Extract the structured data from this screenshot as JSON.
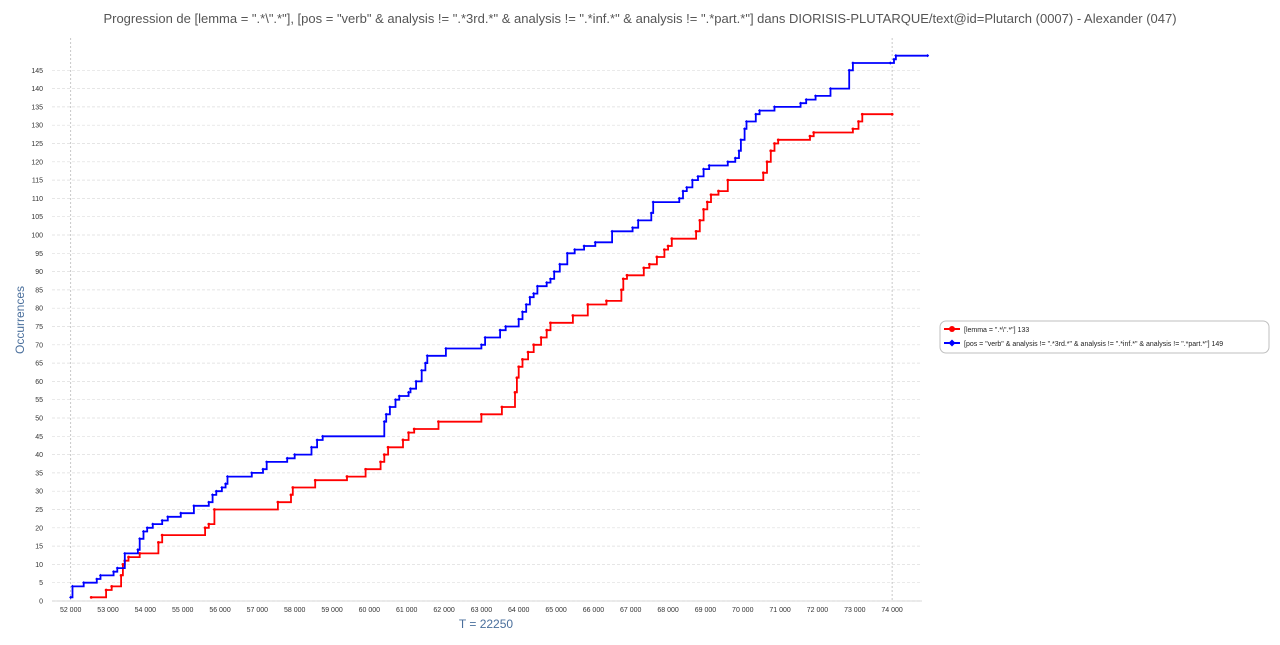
{
  "chart_data": {
    "type": "line",
    "title": "Progression de [lemma = \".*\\\".*\"], [pos = \"verb\" & analysis != \".*3rd.*\" & analysis != \".*inf.*\" & analysis != \".*part.*\"] dans DIORISIS-PLUTARQUE/text@id=Plutarch (0007) - Alexander (047)",
    "xlabel": "T = 22250",
    "ylabel": "Occurrences",
    "xlim": [
      51500,
      74800
    ],
    "ylim": [
      0,
      150
    ],
    "x_ticks": [
      52000,
      53000,
      54000,
      55000,
      56000,
      57000,
      58000,
      59000,
      60000,
      61000,
      62000,
      63000,
      64000,
      65000,
      66000,
      67000,
      68000,
      69000,
      70000,
      71000,
      72000,
      73000,
      74000
    ],
    "x_tick_labels": [
      "52 000",
      "53 000",
      "54 000",
      "55 000",
      "56 000",
      "57 000",
      "58 000",
      "59 000",
      "60 000",
      "61 000",
      "62 000",
      "63 000",
      "64 000",
      "65 000",
      "66 000",
      "67 000",
      "68 000",
      "69 000",
      "70 000",
      "71 000",
      "72 000",
      "73 000",
      "74 000"
    ],
    "y_ticks": [
      0,
      5,
      10,
      15,
      20,
      25,
      30,
      35,
      40,
      45,
      50,
      55,
      60,
      65,
      70,
      75,
      80,
      85,
      90,
      95,
      100,
      105,
      110,
      115,
      120,
      125,
      130,
      135,
      140,
      145
    ],
    "y_tick_labels": [
      "0",
      "5",
      "10",
      "15",
      "20",
      "25",
      "30",
      "35",
      "40",
      "45",
      "50",
      "55",
      "60",
      "65",
      "70",
      "75",
      "80",
      "85",
      "90",
      "95",
      "100",
      "105",
      "110",
      "115",
      "120",
      "125",
      "130",
      "135",
      "140",
      "145"
    ],
    "grid": true,
    "legend_position": "right",
    "series": [
      {
        "name": "[lemma = \".*\\\".*\"] 133",
        "color": "#ff0000",
        "marker": "circle",
        "points": [
          [
            52550,
            1
          ],
          [
            52950,
            3
          ],
          [
            53100,
            4
          ],
          [
            53350,
            7
          ],
          [
            53400,
            10
          ],
          [
            53450,
            11
          ],
          [
            53550,
            12
          ],
          [
            53850,
            13
          ],
          [
            54350,
            16
          ],
          [
            54450,
            18
          ],
          [
            55600,
            20
          ],
          [
            55700,
            21
          ],
          [
            55850,
            25
          ],
          [
            57550,
            27
          ],
          [
            57900,
            29
          ],
          [
            57950,
            31
          ],
          [
            58550,
            33
          ],
          [
            59400,
            34
          ],
          [
            59900,
            36
          ],
          [
            60300,
            38
          ],
          [
            60400,
            40
          ],
          [
            60500,
            42
          ],
          [
            60900,
            44
          ],
          [
            61050,
            46
          ],
          [
            61200,
            47
          ],
          [
            61850,
            49
          ],
          [
            63000,
            51
          ],
          [
            63550,
            53
          ],
          [
            63900,
            57
          ],
          [
            63950,
            61
          ],
          [
            64000,
            64
          ],
          [
            64100,
            66
          ],
          [
            64250,
            68
          ],
          [
            64400,
            70
          ],
          [
            64600,
            72
          ],
          [
            64750,
            74
          ],
          [
            64850,
            76
          ],
          [
            65450,
            78
          ],
          [
            65850,
            81
          ],
          [
            66350,
            82
          ],
          [
            66750,
            85
          ],
          [
            66800,
            88
          ],
          [
            66900,
            89
          ],
          [
            67350,
            91
          ],
          [
            67500,
            92
          ],
          [
            67700,
            94
          ],
          [
            67900,
            96
          ],
          [
            68000,
            97
          ],
          [
            68100,
            99
          ],
          [
            68750,
            101
          ],
          [
            68850,
            104
          ],
          [
            68950,
            107
          ],
          [
            69050,
            109
          ],
          [
            69150,
            111
          ],
          [
            69350,
            112
          ],
          [
            69600,
            115
          ],
          [
            70550,
            117
          ],
          [
            70650,
            120
          ],
          [
            70750,
            123
          ],
          [
            70850,
            125
          ],
          [
            70950,
            126
          ],
          [
            71800,
            127
          ],
          [
            71900,
            128
          ],
          [
            72950,
            129
          ],
          [
            73100,
            131
          ],
          [
            73200,
            133
          ],
          [
            74000,
            133
          ]
        ]
      },
      {
        "name": "[pos = \"verb\" & analysis != \".*3rd.*\" & analysis != \".*inf.*\" & analysis != \".*part.*\"] 149",
        "color": "#0000ff",
        "marker": "diamond",
        "points": [
          [
            52000,
            1
          ],
          [
            52050,
            4
          ],
          [
            52350,
            5
          ],
          [
            52700,
            6
          ],
          [
            52800,
            7
          ],
          [
            53150,
            8
          ],
          [
            53250,
            9
          ],
          [
            53450,
            13
          ],
          [
            53800,
            14
          ],
          [
            53850,
            17
          ],
          [
            53950,
            19
          ],
          [
            54050,
            20
          ],
          [
            54200,
            21
          ],
          [
            54450,
            22
          ],
          [
            54600,
            23
          ],
          [
            54950,
            24
          ],
          [
            55300,
            26
          ],
          [
            55700,
            27
          ],
          [
            55800,
            29
          ],
          [
            55900,
            30
          ],
          [
            56050,
            31
          ],
          [
            56150,
            32
          ],
          [
            56200,
            34
          ],
          [
            56850,
            35
          ],
          [
            57150,
            36
          ],
          [
            57250,
            38
          ],
          [
            57800,
            39
          ],
          [
            58000,
            40
          ],
          [
            58450,
            42
          ],
          [
            58600,
            44
          ],
          [
            58750,
            45
          ],
          [
            60400,
            49
          ],
          [
            60450,
            51
          ],
          [
            60550,
            53
          ],
          [
            60700,
            55
          ],
          [
            60800,
            56
          ],
          [
            61050,
            57
          ],
          [
            61100,
            58
          ],
          [
            61250,
            60
          ],
          [
            61400,
            63
          ],
          [
            61500,
            65
          ],
          [
            61550,
            67
          ],
          [
            62050,
            69
          ],
          [
            63000,
            70
          ],
          [
            63100,
            72
          ],
          [
            63500,
            74
          ],
          [
            63650,
            75
          ],
          [
            64000,
            77
          ],
          [
            64100,
            79
          ],
          [
            64200,
            81
          ],
          [
            64300,
            83
          ],
          [
            64400,
            84
          ],
          [
            64500,
            86
          ],
          [
            64750,
            87
          ],
          [
            64850,
            88
          ],
          [
            64950,
            90
          ],
          [
            65100,
            92
          ],
          [
            65300,
            95
          ],
          [
            65500,
            96
          ],
          [
            65750,
            97
          ],
          [
            66050,
            98
          ],
          [
            66500,
            101
          ],
          [
            67050,
            102
          ],
          [
            67200,
            104
          ],
          [
            67550,
            106
          ],
          [
            67600,
            109
          ],
          [
            68300,
            110
          ],
          [
            68400,
            112
          ],
          [
            68500,
            113
          ],
          [
            68650,
            115
          ],
          [
            68800,
            116
          ],
          [
            68950,
            118
          ],
          [
            69100,
            119
          ],
          [
            69600,
            120
          ],
          [
            69800,
            121
          ],
          [
            69900,
            123
          ],
          [
            69950,
            126
          ],
          [
            70050,
            129
          ],
          [
            70100,
            131
          ],
          [
            70350,
            133
          ],
          [
            70450,
            134
          ],
          [
            70850,
            135
          ],
          [
            71550,
            136
          ],
          [
            71700,
            137
          ],
          [
            71950,
            138
          ],
          [
            72350,
            140
          ],
          [
            72850,
            145
          ],
          [
            72950,
            147
          ],
          [
            73950,
            147
          ],
          [
            74050,
            148
          ],
          [
            74100,
            149
          ],
          [
            74950,
            149
          ]
        ]
      }
    ]
  }
}
